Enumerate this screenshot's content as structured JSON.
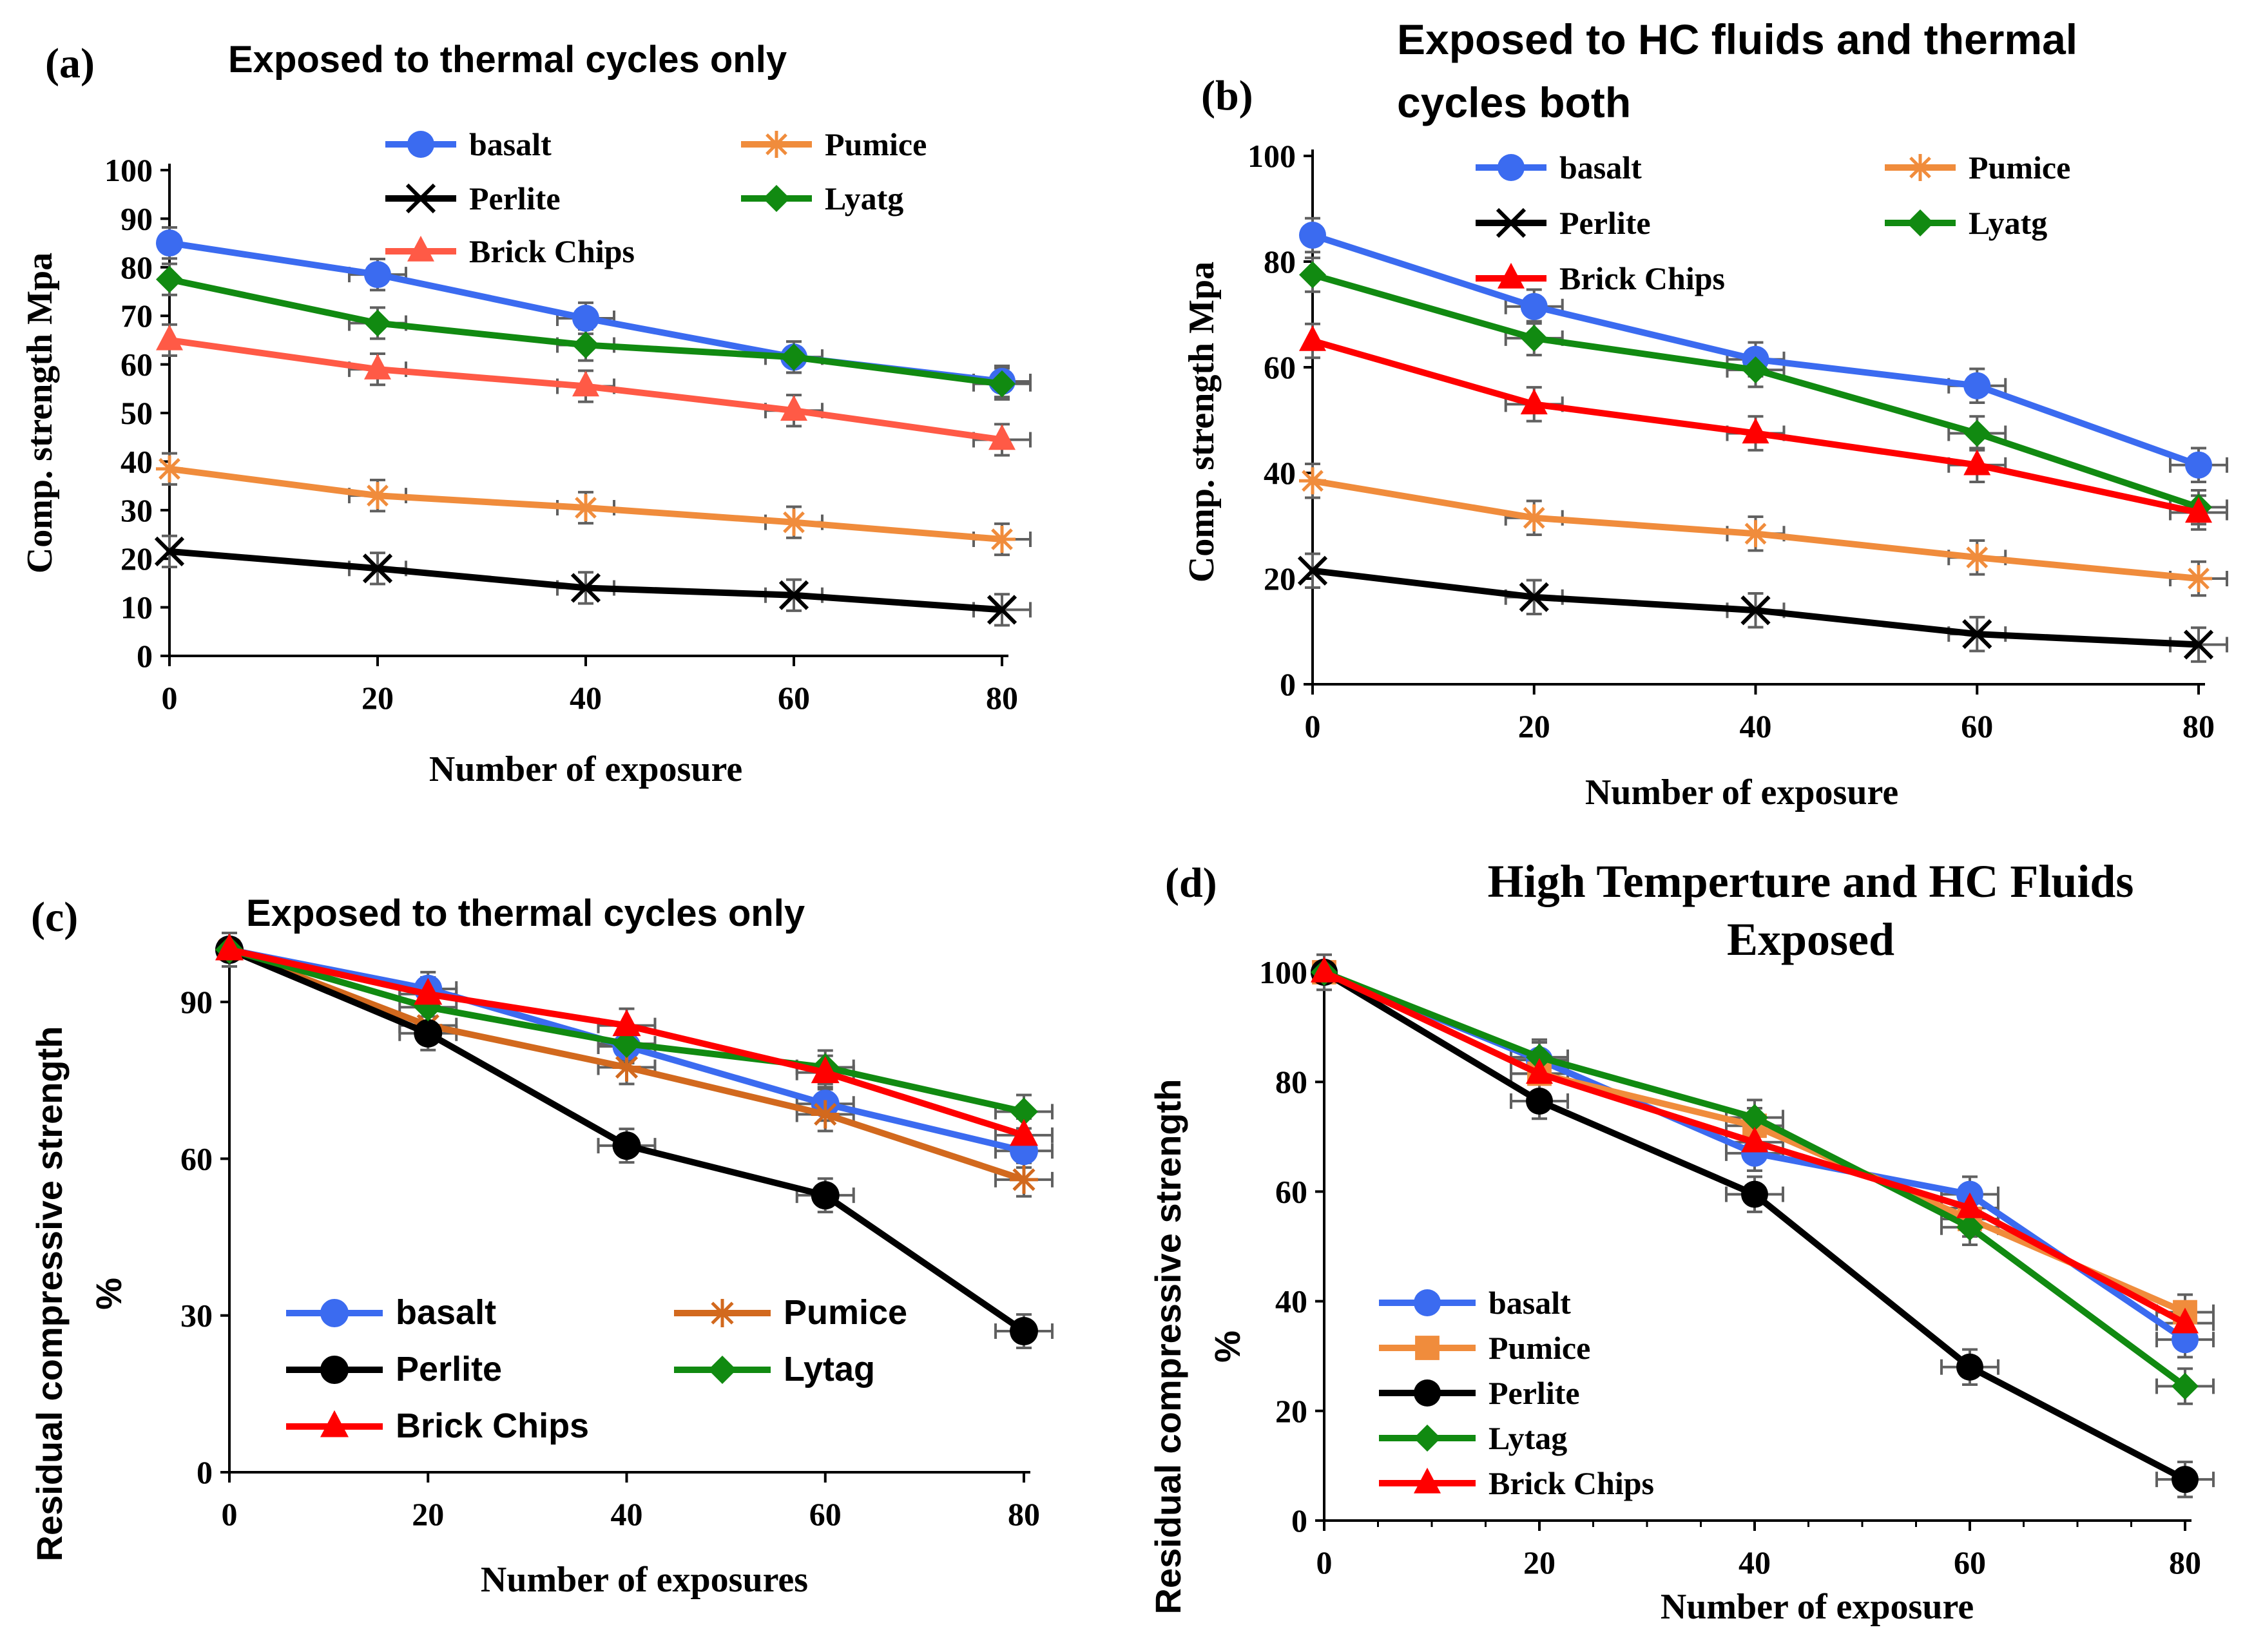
{
  "colors": {
    "basalt": "#3B6BF0",
    "pumice": "#F08C3C",
    "pumice_c": "#D2691E",
    "perlite": "#000000",
    "lytag": "#118A11",
    "brick": "#FF0000",
    "brick_a": "#FF5A46",
    "errorbar": "#606060",
    "axis": "#000000"
  },
  "chart_data": [
    {
      "panel": "(a)",
      "type": "line",
      "title": [
        "Exposed to thermal cycles only"
      ],
      "xlabel": "Number of exposure",
      "ylabel": "Comp. strength Mpa",
      "x": [
        0,
        20,
        40,
        60,
        80
      ],
      "xticks": [
        "0",
        "20",
        "40",
        "60",
        "80"
      ],
      "ylim": [
        0,
        100
      ],
      "yticks": [
        "0",
        "10",
        "20",
        "30",
        "40",
        "50",
        "60",
        "70",
        "80",
        "90",
        "100"
      ],
      "series": [
        {
          "name": "basalt",
          "marker": "circle",
          "values": [
            85,
            78.5,
            69.5,
            61.5,
            56.5
          ]
        },
        {
          "name": "Pumice",
          "marker": "star",
          "values": [
            38.5,
            33,
            30.5,
            27.5,
            24
          ]
        },
        {
          "name": "Perlite",
          "marker": "x",
          "values": [
            21.5,
            18,
            14,
            12.5,
            9.5
          ]
        },
        {
          "name": "Lyatg",
          "marker": "diamond",
          "values": [
            77.5,
            68.5,
            64,
            61.5,
            56
          ]
        },
        {
          "name": "Brick Chips",
          "marker": "triangle",
          "values": [
            65,
            59,
            55.5,
            50.5,
            44.5
          ]
        }
      ]
    },
    {
      "panel": "(b)",
      "type": "line",
      "title": [
        "Exposed to HC fluids and thermal",
        "cycles both"
      ],
      "xlabel": "Number of exposure",
      "ylabel": "Comp. strength Mpa",
      "x": [
        0,
        20,
        40,
        60,
        80
      ],
      "xticks": [
        "0",
        "20",
        "40",
        "60",
        "80"
      ],
      "ylim": [
        0,
        100
      ],
      "yticks": [
        "0",
        "20",
        "40",
        "60",
        "80",
        "100"
      ],
      "series": [
        {
          "name": "basalt",
          "marker": "circle",
          "values": [
            85,
            71.5,
            61.5,
            56.5,
            41.5
          ]
        },
        {
          "name": "Pumice",
          "marker": "star",
          "values": [
            38.5,
            31.5,
            28.5,
            24,
            20
          ]
        },
        {
          "name": "Perlite",
          "marker": "x",
          "values": [
            21.5,
            16.5,
            14,
            9.5,
            7.5
          ]
        },
        {
          "name": "Lyatg",
          "marker": "diamond",
          "values": [
            77.5,
            65.5,
            59.5,
            47.5,
            33.5
          ]
        },
        {
          "name": "Brick Chips",
          "marker": "triangle",
          "values": [
            65,
            53,
            47.5,
            41.5,
            32.5
          ]
        }
      ]
    },
    {
      "panel": "(c)",
      "type": "line",
      "title": [
        "Exposed to thermal cycles only"
      ],
      "xlabel": "Number of exposures",
      "ylabel": [
        "Residual compressive strength",
        "%"
      ],
      "x": [
        0,
        20,
        40,
        60,
        80
      ],
      "xticks": [
        "0",
        "20",
        "40",
        "60",
        "80"
      ],
      "ylim": [
        0,
        100
      ],
      "yticks": [
        "0",
        "30",
        "60",
        "90"
      ],
      "series": [
        {
          "name": "basalt",
          "marker": "circle",
          "values": [
            100,
            92.5,
            81.5,
            70.5,
            61.5
          ]
        },
        {
          "name": "Pumice",
          "marker": "star",
          "values": [
            100,
            85.5,
            77.5,
            68.5,
            56
          ]
        },
        {
          "name": "Perlite",
          "marker": "circle",
          "values": [
            100,
            84,
            62.5,
            53,
            27
          ]
        },
        {
          "name": "Lytag",
          "marker": "diamond",
          "values": [
            100,
            89,
            82,
            77.5,
            69
          ]
        },
        {
          "name": "Brick Chips",
          "marker": "triangle",
          "values": [
            100,
            91.5,
            85.5,
            76.5,
            64.5
          ]
        }
      ]
    },
    {
      "panel": "(d)",
      "type": "line",
      "title": [
        "High Temperture and HC Fluids",
        "Exposed"
      ],
      "xlabel": "Number of exposure",
      "ylabel": [
        "Residual compressive strength",
        "%"
      ],
      "x": [
        0,
        20,
        40,
        60,
        80
      ],
      "xticks": [
        "0",
        "20",
        "40",
        "60",
        "80"
      ],
      "ylim": [
        0,
        100
      ],
      "yticks": [
        "0",
        "20",
        "40",
        "60",
        "80",
        "100"
      ],
      "series": [
        {
          "name": "basalt",
          "marker": "circle",
          "values": [
            100,
            84,
            67,
            59.5,
            33
          ]
        },
        {
          "name": "Pumice",
          "marker": "square",
          "values": [
            100,
            81.5,
            72,
            55,
            38
          ]
        },
        {
          "name": "Perlite",
          "marker": "circle",
          "values": [
            100,
            76.5,
            59.5,
            28,
            7.5
          ]
        },
        {
          "name": "Lytag",
          "marker": "diamond",
          "values": [
            100,
            84.5,
            73.5,
            53.5,
            24.5
          ]
        },
        {
          "name": "Brick Chips",
          "marker": "triangle",
          "values": [
            100,
            81.5,
            69,
            57,
            36
          ]
        }
      ]
    }
  ]
}
